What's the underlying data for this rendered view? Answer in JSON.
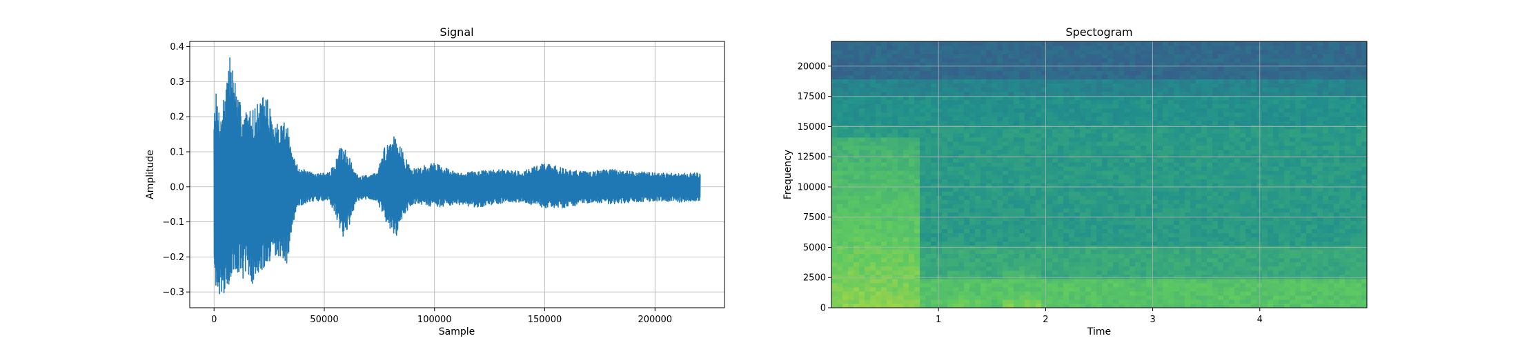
{
  "chart_data": [
    {
      "type": "line",
      "title": "Signal",
      "xlabel": "Sample",
      "ylabel": "Amplitude",
      "xlim": [
        -11025,
        231525
      ],
      "ylim": [
        -0.345,
        0.415
      ],
      "xticks": [
        0,
        50000,
        100000,
        150000,
        200000
      ],
      "xtick_labels": [
        "0",
        "50000",
        "100000",
        "150000",
        "200000"
      ],
      "yticks": [
        -0.3,
        -0.2,
        -0.1,
        0.0,
        0.1,
        0.2,
        0.3,
        0.4
      ],
      "ytick_labels": [
        "−0.3",
        "−0.2",
        "−0.1",
        "0.0",
        "0.1",
        "0.2",
        "0.3",
        "0.4"
      ],
      "grid": true,
      "color": "#1f77b4",
      "envelope": {
        "x": [
          0,
          1000,
          3000,
          5000,
          7000,
          9000,
          11000,
          14000,
          17000,
          20000,
          24000,
          27000,
          30000,
          33000,
          35000,
          38000,
          42000,
          46000,
          52000,
          55000,
          57000,
          59000,
          61000,
          64000,
          66000,
          70000,
          74000,
          77000,
          80000,
          83000,
          86000,
          90000,
          95000,
          100000,
          110000,
          120000,
          130000,
          140000,
          150000,
          160000,
          170000,
          180000,
          190000,
          200000,
          210000,
          220500
        ],
        "upper": [
          0.25,
          0.27,
          0.2,
          0.3,
          0.38,
          0.34,
          0.25,
          0.22,
          0.22,
          0.24,
          0.27,
          0.17,
          0.19,
          0.2,
          0.1,
          0.06,
          0.045,
          0.04,
          0.04,
          0.07,
          0.11,
          0.12,
          0.09,
          0.04,
          0.03,
          0.035,
          0.04,
          0.11,
          0.14,
          0.16,
          0.09,
          0.05,
          0.06,
          0.07,
          0.04,
          0.045,
          0.05,
          0.045,
          0.07,
          0.05,
          0.045,
          0.05,
          0.045,
          0.04,
          0.04,
          0.04
        ],
        "lower": [
          -0.2,
          -0.3,
          -0.31,
          -0.3,
          -0.28,
          -0.27,
          -0.24,
          -0.27,
          -0.28,
          -0.25,
          -0.24,
          -0.21,
          -0.2,
          -0.22,
          -0.15,
          -0.06,
          -0.045,
          -0.04,
          -0.04,
          -0.08,
          -0.12,
          -0.15,
          -0.12,
          -0.05,
          -0.04,
          -0.035,
          -0.04,
          -0.09,
          -0.12,
          -0.15,
          -0.08,
          -0.05,
          -0.05,
          -0.06,
          -0.05,
          -0.06,
          -0.05,
          -0.045,
          -0.06,
          -0.06,
          -0.045,
          -0.05,
          -0.045,
          -0.04,
          -0.045,
          -0.04
        ]
      }
    },
    {
      "type": "heatmap",
      "title": "Spectogram",
      "xlabel": "Time",
      "ylabel": "Frequency",
      "xlim": [
        0,
        5.0
      ],
      "ylim": [
        0,
        22050
      ],
      "xticks": [
        1,
        2,
        3,
        4
      ],
      "xtick_labels": [
        "1",
        "2",
        "3",
        "4"
      ],
      "yticks": [
        0,
        2500,
        5000,
        7500,
        10000,
        12500,
        15000,
        17500,
        20000
      ],
      "ytick_labels": [
        "0",
        "2500",
        "5000",
        "7500",
        "10000",
        "12500",
        "15000",
        "17500",
        "20000"
      ],
      "grid": true,
      "colormap": [
        "#440154",
        "#3b528b",
        "#21918c",
        "#5ec962",
        "#fde725"
      ],
      "bands": [
        {
          "f_from": 18800,
          "f_to": 22050,
          "level": 0.34
        },
        {
          "f_from": 17500,
          "f_to": 18800,
          "level": 0.45
        },
        {
          "f_from": 15000,
          "f_to": 17500,
          "level": 0.5
        },
        {
          "f_from": 5000,
          "f_to": 15000,
          "level": 0.54
        },
        {
          "f_from": 2500,
          "f_to": 5000,
          "level": 0.6
        },
        {
          "f_from": 0,
          "f_to": 2500,
          "level": 0.72
        }
      ],
      "events": [
        {
          "t_from": 0.0,
          "t_to": 0.8,
          "f_from": 0,
          "f_to": 14000,
          "level": 0.82
        },
        {
          "t_from": 1.1,
          "t_to": 1.4,
          "f_from": 0,
          "f_to": 3500,
          "level": 0.78
        },
        {
          "t_from": 1.6,
          "t_to": 1.95,
          "f_from": 0,
          "f_to": 3500,
          "level": 0.8
        }
      ]
    }
  ]
}
